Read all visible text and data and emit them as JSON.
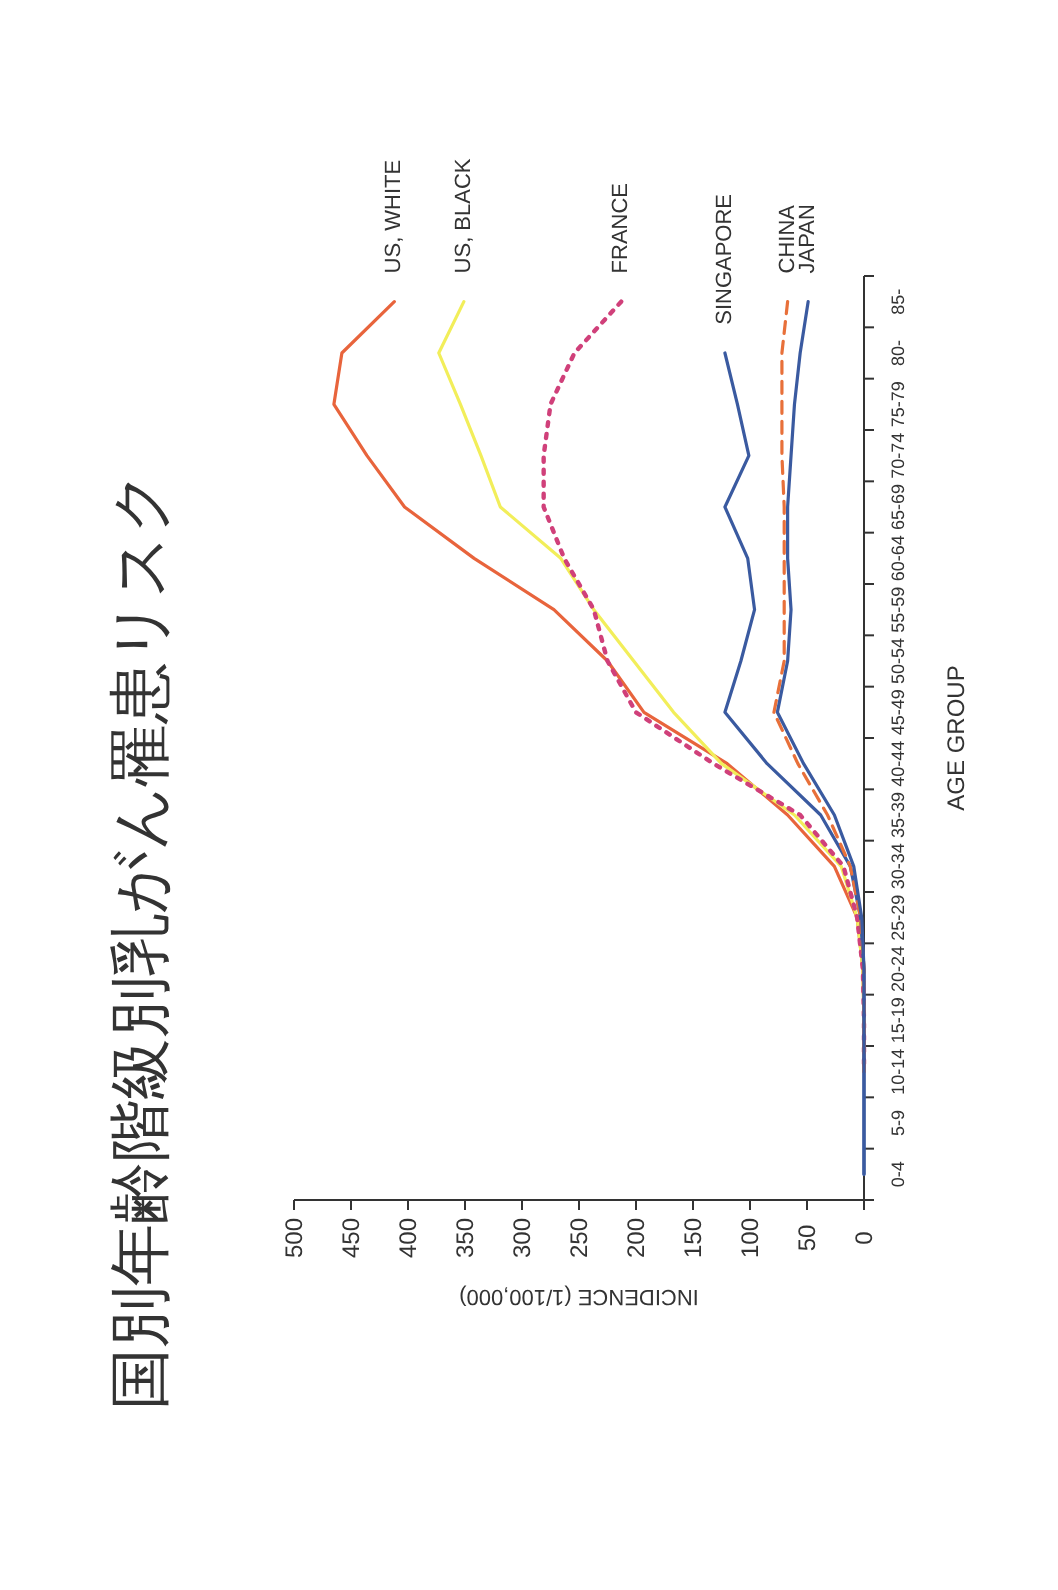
{
  "chart_data": {
    "type": "line",
    "orientation": "horizontal",
    "title": "国別年齢階級別乳がん罹患リスク",
    "xlabel": "INCIDENCE (1/100,000)",
    "ylabel": "AGE GROUP",
    "categories": [
      "85-",
      "80-",
      "75-79",
      "70-74",
      "65-69",
      "60-64",
      "55-59",
      "50-54",
      "45-49",
      "40-44",
      "35-39",
      "30-34",
      "25-29",
      "20-24",
      "15-19",
      "10-14",
      "5-9",
      "0-4"
    ],
    "xlim": [
      500,
      0
    ],
    "xticks": [
      500,
      450,
      400,
      350,
      300,
      250,
      200,
      150,
      100,
      50,
      0
    ],
    "grid": false,
    "legend": false,
    "marker": "none",
    "series": [
      {
        "name": "US, WHITE",
        "color": "#e8643c",
        "line_style": "solid",
        "values": [
          412,
          458,
          465,
          436,
          403,
          342,
          272,
          225,
          193,
          120,
          67,
          26,
          6,
          1,
          0,
          0,
          null,
          null
        ]
      },
      {
        "name": "US, BLACK",
        "color": "#f2ee5a",
        "line_style": "solid",
        "values": [
          351,
          373,
          354,
          336,
          319,
          266,
          237,
          202,
          167,
          125,
          61,
          20,
          6,
          1,
          0,
          null,
          null,
          null
        ]
      },
      {
        "name": "FRANCE",
        "color": "#d0407a",
        "line_style": "dotted",
        "values": [
          213,
          254,
          275,
          281,
          281,
          263,
          237,
          225,
          200,
          132,
          56,
          18,
          6,
          1,
          0,
          0,
          null,
          null
        ]
      },
      {
        "name": "SINGAPORE",
        "color": "#3a5aa0",
        "line_style": "solid",
        "values": [
          null,
          122,
          111,
          101,
          122,
          102,
          96,
          108,
          122,
          85,
          38,
          12,
          3,
          0,
          0,
          0,
          0,
          0
        ]
      },
      {
        "name": "CHINA",
        "color": "#e8703a",
        "line_style": "dashed",
        "values": [
          67,
          72,
          72,
          72,
          70,
          70,
          70,
          70,
          79,
          58,
          32,
          12,
          3,
          0,
          0,
          0,
          null,
          null
        ]
      },
      {
        "name": "JAPAN",
        "color": "#3a5aa0",
        "line_style": "solid",
        "values": [
          49,
          56,
          61,
          64,
          67,
          67,
          64,
          67,
          76,
          53,
          26,
          9,
          2,
          0,
          0,
          0,
          0,
          0
        ]
      }
    ]
  }
}
